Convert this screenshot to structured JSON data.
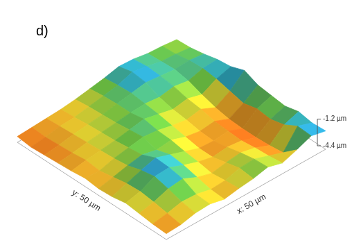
{
  "chart_data": {
    "type": "surface",
    "title": "d)",
    "xlabel": "x: 50 µm",
    "ylabel": "y: 50 µm",
    "x": [
      0,
      4.55,
      9.09,
      13.64,
      18.18,
      22.73,
      27.27,
      31.82,
      36.36,
      40.91,
      45.45,
      50
    ],
    "y": [
      0,
      4.55,
      9.09,
      13.64,
      18.18,
      22.73,
      27.27,
      31.82,
      36.36,
      40.91,
      45.45,
      50
    ],
    "z": [
      [
        -3.7,
        -3.6,
        -3.2,
        -3.1,
        -3.5,
        -3.2,
        -3.0,
        -2.6,
        -3.1,
        -2.5,
        -1.8,
        -2.2
      ],
      [
        -3.6,
        -3.3,
        -2.9,
        -3.0,
        -3.4,
        -3.3,
        -2.8,
        -2.7,
        -3.3,
        -3.9,
        -1.7,
        -2.3
      ],
      [
        -3.4,
        -3.0,
        -2.4,
        -2.2,
        -3.0,
        -3.5,
        -3.2,
        -3.0,
        -3.4,
        -4.1,
        -2.6,
        -2.0
      ],
      [
        -3.2,
        -2.8,
        -2.0,
        -1.9,
        -2.6,
        -3.2,
        -3.6,
        -3.4,
        -3.6,
        -4.2,
        -3.0,
        -2.4
      ],
      [
        -3.5,
        -2.9,
        -2.3,
        -1.8,
        -2.4,
        -3.0,
        -3.6,
        -3.7,
        -3.5,
        -4.2,
        -2.8,
        -2.2
      ],
      [
        -3.6,
        -3.2,
        -2.8,
        -2.5,
        -2.9,
        -2.7,
        -3.3,
        -3.6,
        -3.4,
        -4.1,
        -3.2,
        -2.0
      ],
      [
        -3.4,
        -3.5,
        -3.0,
        -2.7,
        -2.4,
        -2.6,
        -3.0,
        -3.3,
        -3.0,
        -3.8,
        -2.8,
        -1.3
      ],
      [
        -3.6,
        -3.3,
        -3.1,
        -2.9,
        -2.6,
        -2.3,
        -2.7,
        -3.1,
        -2.8,
        -3.3,
        -2.4,
        -1.9
      ],
      [
        -3.7,
        -3.5,
        -3.2,
        -3.0,
        -2.8,
        -2.6,
        -2.5,
        -2.7,
        -2.4,
        -2.7,
        -2.2,
        -2.1
      ],
      [
        -3.8,
        -3.6,
        -3.3,
        -3.1,
        -2.9,
        -2.6,
        -2.3,
        -2.0,
        -2.2,
        -2.4,
        -2.3,
        -2.5
      ],
      [
        -3.9,
        -3.7,
        -3.4,
        -3.3,
        -3.0,
        -2.7,
        -2.4,
        -1.8,
        -2.1,
        -2.5,
        -2.6,
        -2.8
      ],
      [
        -3.7,
        -3.6,
        -3.5,
        -3.4,
        -3.2,
        -2.9,
        -2.6,
        -2.2,
        -2.3,
        -2.6,
        -2.7,
        -2.9
      ]
    ],
    "xlim": [
      0,
      50
    ],
    "ylim": [
      0,
      50
    ],
    "zlim": [
      -4.4,
      -1.2
    ],
    "zticks": [
      {
        "value": -1.2,
        "label": "-1.2 µm"
      },
      {
        "value": -4.4,
        "label": "-4.4 µm"
      }
    ],
    "tick_labels": false,
    "grid": false
  }
}
